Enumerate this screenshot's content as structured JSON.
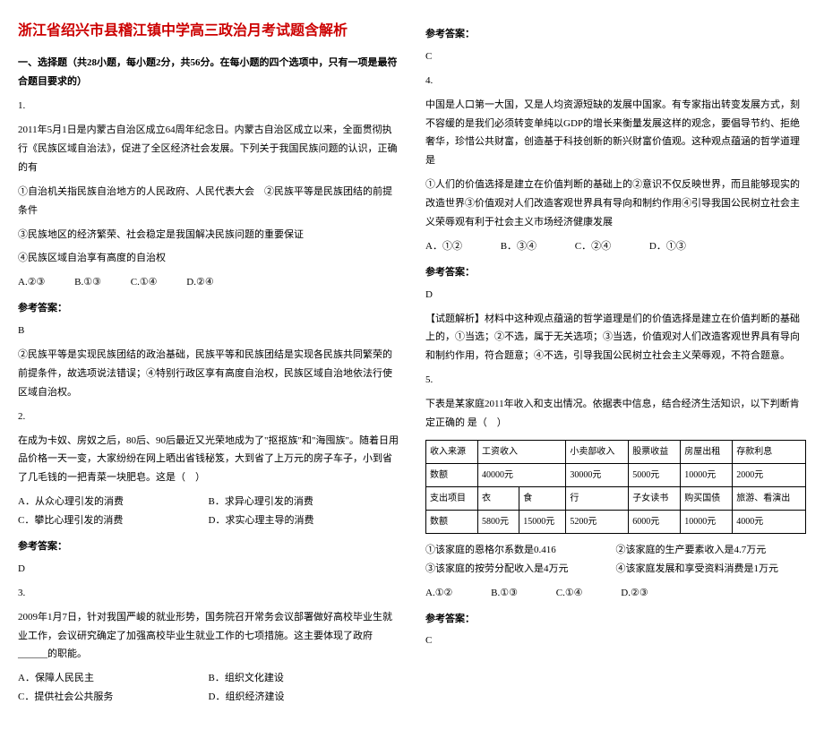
{
  "title": "浙江省绍兴市县稽江镇中学高三政治月考试题含解析",
  "left": {
    "section1_header": "一、选择题（共28小题，每小题2分，共56分。在每小题的四个选项中，只有一项是最符合题目要求的）",
    "q1_num": "1.",
    "q1_body": "2011年5月1日是内蒙古自治区成立64周年纪念日。内蒙古自治区成立以来，全面贯彻执行《民族区域自治法》，促进了全区经济社会发展。下列关于我国民族问题的认识，正确的有",
    "q1_opts_lines": [
      "①自治机关指民族自治地方的人民政府、人民代表大会　②民族平等是民族团结的前提条件",
      "③民族地区的经济繁荣、社会稳定是我国解决民族问题的重要保证",
      "④民族区域自治享有高度的自治权"
    ],
    "q1_choices": [
      "A.②③",
      "B.①③",
      "C.①④",
      "D.②④"
    ],
    "q1_ans_label": "参考答案：",
    "q1_ans": "B",
    "q1_analysis": "②民族平等是实现民族团结的政治基础，民族平等和民族团结是实现各民族共同繁荣的前提条件，故选项说法错误；④特别行政区享有高度自治权，民族区域自治地依法行使区域自治权。",
    "q2_num": "2.",
    "q2_body": "在成为卡奴、房奴之后，80后、90后最近又光荣地成为了\"抠抠族\"和\"海囤族\"。随着日用品价格一天一变，大家纷纷在网上晒出省钱秘笈，大到省了上万元的房子车子，小到省了几毛钱的一把青菜一块肥皂。这是（　）",
    "q2_choices": [
      "A．从众心理引发的消费",
      "B．求异心理引发的消费",
      "C．攀比心理引发的消费",
      "D．求实心理主导的消费"
    ],
    "q2_ans_label": "参考答案：",
    "q2_ans": "D",
    "q3_num": "3.",
    "q3_body": "2009年1月7日，针对我国严峻的就业形势，国务院召开常务会议部署做好高校毕业生就业工作，会议研究确定了加强高校毕业生就业工作的七项措施。这主要体现了政府______的职能。",
    "q3_choices": [
      "A．保障人民民主",
      "B．组织文化建设",
      "C．提供社会公共服务",
      "D．组织经济建设"
    ]
  },
  "right": {
    "q3_ans_label": "参考答案：",
    "q3_ans": "C",
    "q4_num": "4.",
    "q4_body": "中国是人口第一大国，又是人均资源短缺的发展中国家。有专家指出转变发展方式，刻不容缓的是我们必须转变单纯以GDP的增长来衡量发展这样的观念，要倡导节约、拒绝奢华，珍惜公共财富，创造基于科技创新的新兴财富价值观。这种观点蕴涵的哲学道理是",
    "q4_opts_line": "①人们的价值选择是建立在价值判断的基础上的②意识不仅反映世界，而且能够现实的改造世界③价值观对人们改造客观世界具有导向和制约作用④引导我国公民树立社会主义荣辱观有利于社会主义市场经济健康发展",
    "q4_choices": [
      "A．①②",
      "B．③④",
      "C．②④",
      "D．①③"
    ],
    "q4_ans_label": "参考答案：",
    "q4_ans": "D",
    "q4_analysis": "【试题解析】材料中这种观点蕴涵的哲学道理是们的价值选择是建立在价值判断的基础上的，①当选；②不选，属于无关选项；③当选，价值观对人们改造客观世界具有导向和制约作用，符合题意；④不选，引导我国公民树立社会主义荣辱观，不符合题意。",
    "q5_num": "5.",
    "q5_body": "下表是某家庭2011年收入和支出情况。依据表中信息，结合经济生活知识，以下判断肯定正确的 是（　）",
    "table1": {
      "rows": [
        [
          "收入来源",
          "工资收入",
          "",
          "小卖部收入",
          "股票收益",
          "房屋出租",
          "存款利息"
        ],
        [
          "数额",
          "40000元",
          "",
          "30000元",
          "5000元",
          "10000元",
          "2000元"
        ],
        [
          "支出项目",
          "衣",
          "食",
          "行",
          "子女读书",
          "购买国债",
          "旅游、看演出"
        ],
        [
          "数额",
          "5800元",
          "15000元",
          "5200元",
          "6000元",
          "10000元",
          "4000元"
        ]
      ]
    },
    "q5_opts": [
      "①该家庭的恩格尔系数是0.416",
      "②该家庭的生产要素收入是4.7万元",
      "③该家庭的按劳分配收入是4万元",
      "④该家庭发展和享受资料消费是1万元"
    ],
    "q5_choices": [
      "A.①②",
      "B.①③",
      "C.①④",
      "D.②③"
    ],
    "q5_ans_label": "参考答案：",
    "q5_ans": "C"
  }
}
